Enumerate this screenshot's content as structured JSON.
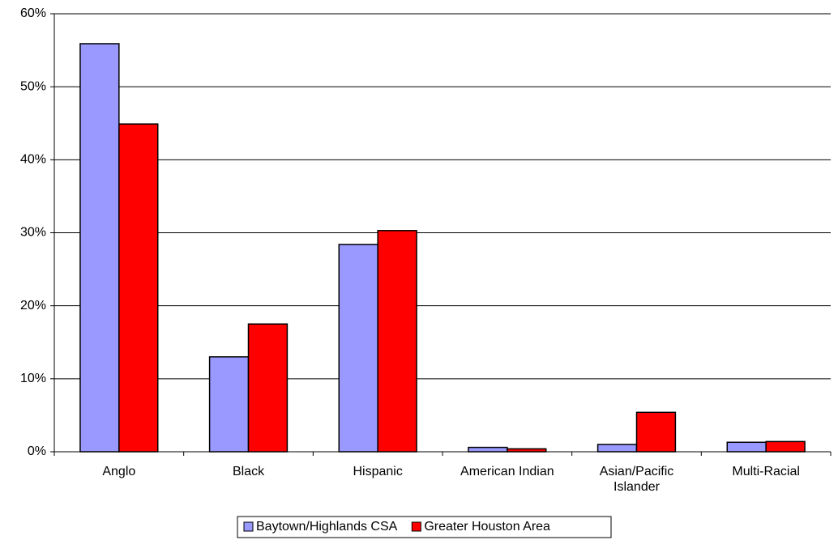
{
  "chart_data": {
    "type": "bar",
    "categories": [
      "Anglo",
      "Black",
      "Hispanic",
      "American Indian",
      "Asian/Pacific Islander",
      "Multi-Racial"
    ],
    "series": [
      {
        "name": "Baytown/Highlands CSA",
        "color": "#9999ff",
        "values": [
          55.9,
          13.0,
          28.4,
          0.6,
          1.0,
          1.3
        ]
      },
      {
        "name": "Greater Houston Area",
        "color": "#ff0000",
        "values": [
          44.9,
          17.5,
          30.3,
          0.4,
          5.4,
          1.4
        ]
      }
    ],
    "ylim": [
      0,
      60
    ],
    "yticks": [
      {
        "value": 0,
        "label": "0%"
      },
      {
        "value": 10,
        "label": "10%"
      },
      {
        "value": 20,
        "label": "20%"
      },
      {
        "value": 30,
        "label": "30%"
      },
      {
        "value": 40,
        "label": "40%"
      },
      {
        "value": 50,
        "label": "50%"
      },
      {
        "value": 60,
        "label": "60%"
      }
    ],
    "grid": true,
    "legend": "bottom"
  }
}
